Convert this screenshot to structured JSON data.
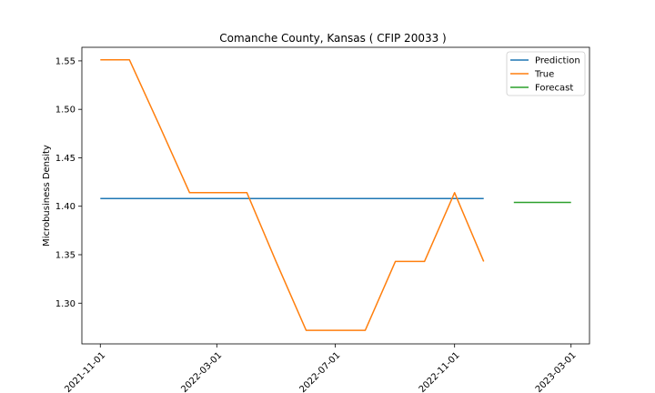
{
  "chart_data": {
    "type": "line",
    "title": "Comanche County, Kansas ( CFIP 20033 )",
    "xlabel": "",
    "ylabel": "Microbusiness Density",
    "x_axis_type": "date",
    "xlim": [
      "2021-10-13",
      "2023-03-20"
    ],
    "ylim": [
      1.258,
      1.564
    ],
    "x_ticks": [
      "2021-11-01",
      "2022-03-01",
      "2022-07-01",
      "2022-11-01",
      "2023-03-01"
    ],
    "y_ticks": [
      "1.30",
      "1.35",
      "1.40",
      "1.45",
      "1.50",
      "1.55"
    ],
    "legend_position": "top-right",
    "grid": false,
    "series": [
      {
        "name": "Prediction",
        "color": "#1f77b4",
        "points": [
          {
            "x": "2021-11-01",
            "y": 1.408
          },
          {
            "x": "2022-12-01",
            "y": 1.408
          }
        ]
      },
      {
        "name": "True",
        "color": "#ff7f0e",
        "points": [
          {
            "x": "2021-11-01",
            "y": 1.551
          },
          {
            "x": "2021-12-01",
            "y": 1.551
          },
          {
            "x": "2022-01-01",
            "y": 1.483
          },
          {
            "x": "2022-02-01",
            "y": 1.414
          },
          {
            "x": "2022-03-01",
            "y": 1.414
          },
          {
            "x": "2022-04-01",
            "y": 1.414
          },
          {
            "x": "2022-05-01",
            "y": 1.343
          },
          {
            "x": "2022-06-01",
            "y": 1.272
          },
          {
            "x": "2022-07-01",
            "y": 1.272
          },
          {
            "x": "2022-08-01",
            "y": 1.272
          },
          {
            "x": "2022-09-01",
            "y": 1.343
          },
          {
            "x": "2022-10-01",
            "y": 1.343
          },
          {
            "x": "2022-11-01",
            "y": 1.414
          },
          {
            "x": "2022-12-01",
            "y": 1.343
          }
        ]
      },
      {
        "name": "Forecast",
        "color": "#2ca02c",
        "points": [
          {
            "x": "2023-01-01",
            "y": 1.404
          },
          {
            "x": "2023-03-01",
            "y": 1.404
          }
        ]
      }
    ]
  }
}
